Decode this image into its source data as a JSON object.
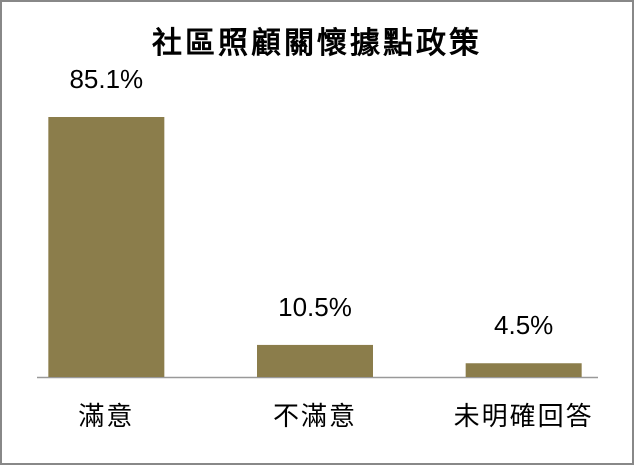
{
  "chart_data": {
    "type": "bar",
    "title": "社區照顧關懷據點政策",
    "categories": [
      "滿意",
      "不滿意",
      "未明確回答"
    ],
    "values": [
      85.1,
      10.5,
      4.5
    ],
    "value_labels": [
      "85.1%",
      "10.5%",
      "4.5%"
    ],
    "color": "#8b7d4b"
  }
}
